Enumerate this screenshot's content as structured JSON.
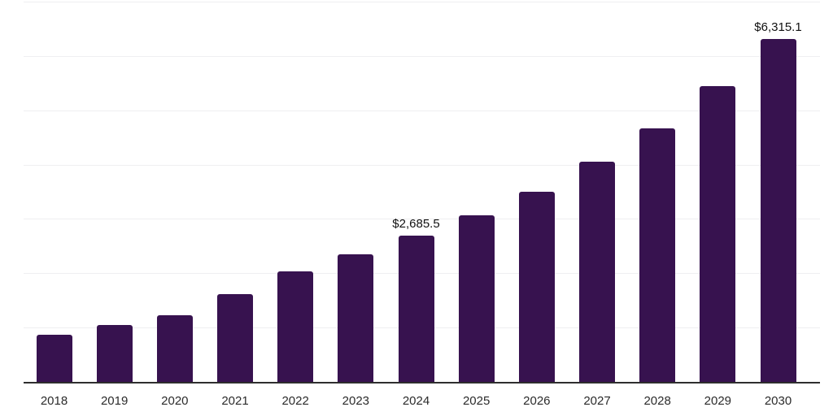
{
  "chart_data": {
    "type": "bar",
    "title": "",
    "xlabel": "",
    "ylabel": "",
    "categories": [
      "2018",
      "2019",
      "2020",
      "2021",
      "2022",
      "2023",
      "2024",
      "2025",
      "2026",
      "2027",
      "2028",
      "2029",
      "2030"
    ],
    "values": [
      870,
      1050,
      1230,
      1620,
      2040,
      2350,
      2685.5,
      3070,
      3500,
      4060,
      4670,
      5450,
      6315.1
    ],
    "data_labels": [
      "",
      "",
      "",
      "",
      "",
      "",
      "$2,685.5",
      "",
      "",
      "",
      "",
      "",
      "$6,315.1"
    ],
    "ylim": [
      0,
      7000
    ],
    "gridline_step": 1000,
    "grid": "horizontal-faint",
    "legend": "none",
    "colors": {
      "bar": "#37124F",
      "grid": "#efeff1",
      "axis_line": "#2e2e2e",
      "tick_label": "#2b2b2b",
      "data_label": "#111111"
    }
  }
}
